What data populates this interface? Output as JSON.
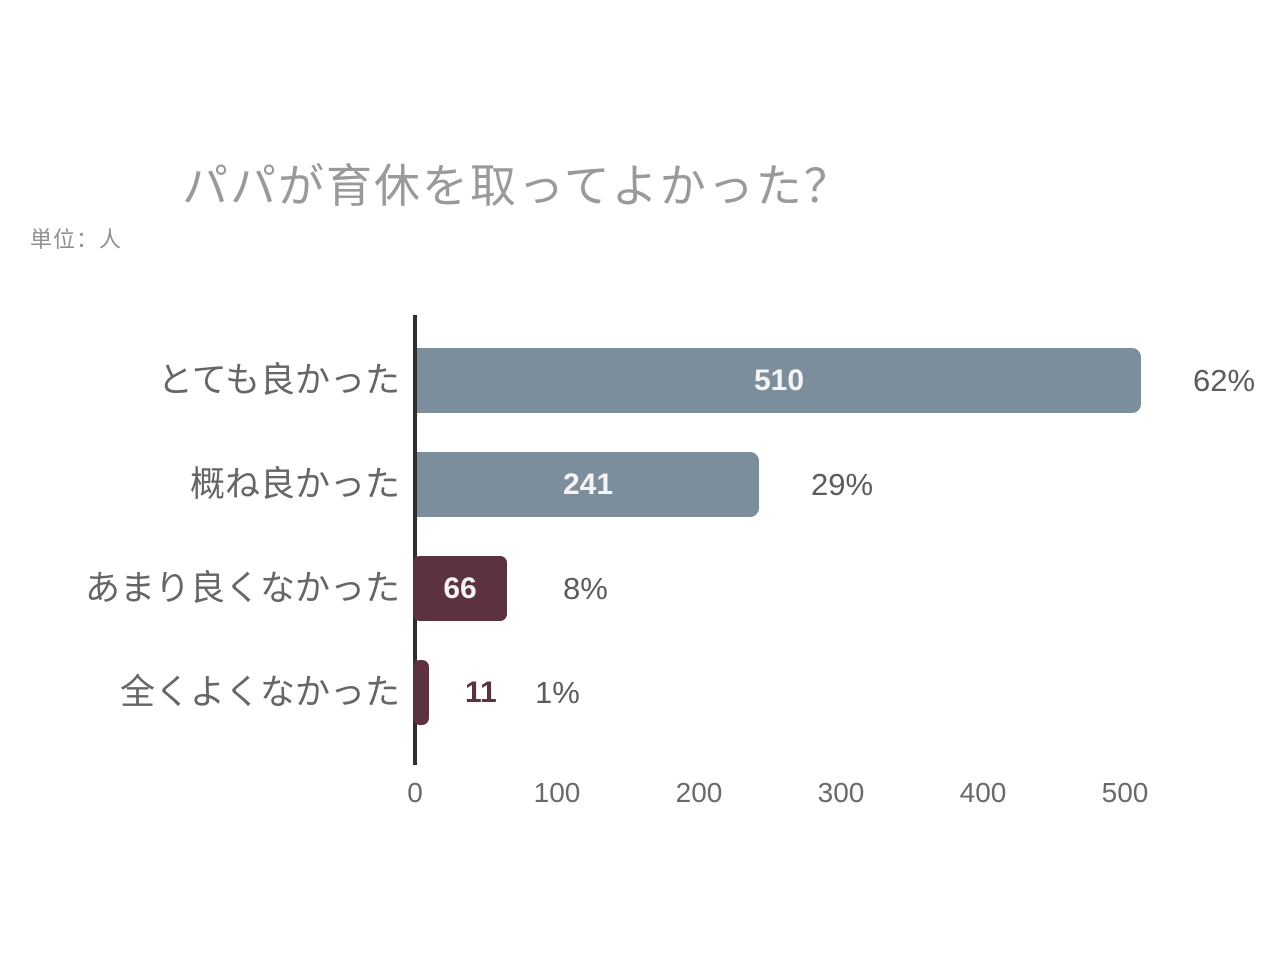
{
  "header": {
    "unit_label": "単位：人"
  },
  "colors": {
    "bar_blue_gray": "#7c8e9b",
    "bar_maroon": "#5c3140",
    "axis": "#2e2e2e",
    "title_text": "#9a9a9a",
    "value_inside_text": "#f6f3f4",
    "value_outside_text": "#5c3140"
  },
  "chart_data": {
    "type": "bar",
    "orientation": "horizontal",
    "title": "パパが育休を取ってよかった？",
    "unit": "人",
    "categories": [
      "とても良かった",
      "概ね良かった",
      "あまり良くなかった",
      "全くよくなかった"
    ],
    "values": [
      510,
      241,
      66,
      11
    ],
    "percent_labels": [
      "62%",
      "29%",
      "8%",
      "1%"
    ],
    "bar_colors": [
      "#7c8e9b",
      "#7c8e9b",
      "#5c3140",
      "#5c3140"
    ],
    "value_label_inside": [
      true,
      true,
      true,
      false
    ],
    "x_ticks": [
      0,
      100,
      200,
      300,
      400,
      500
    ],
    "xlim": [
      0,
      500
    ],
    "grid": false,
    "legend": false,
    "xlabel": "",
    "ylabel": ""
  }
}
